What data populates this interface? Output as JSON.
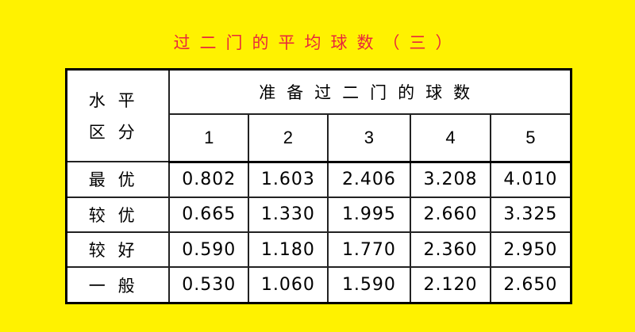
{
  "title": "过二门的平均球数（三）",
  "table": {
    "corner_header": [
      "水平",
      "区分"
    ],
    "group_header": "准备过二门的球数",
    "columns": [
      "1",
      "2",
      "3",
      "4",
      "5"
    ],
    "rows": [
      {
        "label": "最优",
        "values": [
          "0.802",
          "1.603",
          "2.406",
          "3.208",
          "4.010"
        ]
      },
      {
        "label": "较优",
        "values": [
          "0.665",
          "1.330",
          "1.995",
          "2.660",
          "3.325"
        ]
      },
      {
        "label": "较好",
        "values": [
          "0.590",
          "1.180",
          "1.770",
          "2.360",
          "2.950"
        ]
      },
      {
        "label": "一般",
        "values": [
          "0.530",
          "1.060",
          "1.590",
          "2.120",
          "2.650"
        ]
      }
    ]
  },
  "colors": {
    "background": "#fff200",
    "title": "#e8283c"
  }
}
